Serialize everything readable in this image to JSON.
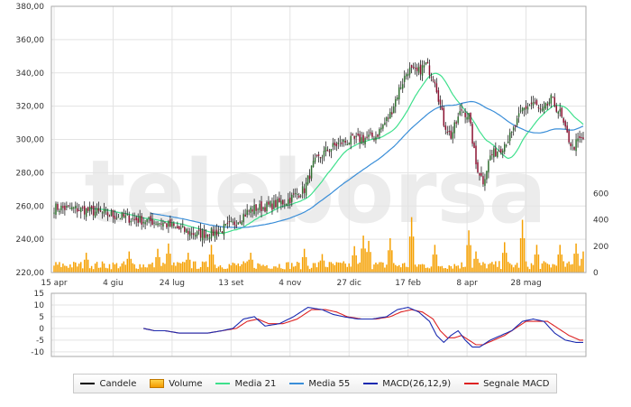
{
  "chart_data": {
    "type": "candlestick",
    "price_axis": {
      "ticks": [
        "380,00",
        "360,00",
        "340,00",
        "320,00",
        "300,00",
        "280,00",
        "260,00",
        "240,00",
        "220,00"
      ],
      "ylim": [
        220,
        380
      ]
    },
    "volume_axis": {
      "ticks": [
        "600",
        "400",
        "200",
        "0"
      ],
      "ylim": [
        0,
        650
      ]
    },
    "macd_axis": {
      "ticks": [
        "15",
        "10",
        "5",
        "0",
        "-5",
        "-10"
      ],
      "ylim": [
        -12,
        15
      ]
    },
    "x_labels": [
      "15 apr",
      "4 giu",
      "24 lug",
      "13 set",
      "4 nov",
      "27 dic",
      "17 feb",
      "8 apr",
      "28 mag"
    ],
    "x_label_pos": [
      0,
      33,
      66,
      99,
      132,
      165,
      198,
      231,
      264
    ],
    "n_periods": 297,
    "grid": true,
    "price_anchors": [
      [
        0,
        259
      ],
      [
        15,
        258
      ],
      [
        30,
        255
      ],
      [
        45,
        252
      ],
      [
        60,
        250
      ],
      [
        70,
        246
      ],
      [
        80,
        243
      ],
      [
        90,
        244
      ],
      [
        100,
        249
      ],
      [
        110,
        258
      ],
      [
        120,
        260
      ],
      [
        130,
        263
      ],
      [
        140,
        270
      ],
      [
        145,
        285
      ],
      [
        152,
        293
      ],
      [
        160,
        298
      ],
      [
        170,
        300
      ],
      [
        180,
        302
      ],
      [
        188,
        315
      ],
      [
        193,
        330
      ],
      [
        198,
        342
      ],
      [
        203,
        340
      ],
      [
        208,
        345
      ],
      [
        213,
        336
      ],
      [
        218,
        310
      ],
      [
        222,
        302
      ],
      [
        228,
        318
      ],
      [
        232,
        314
      ],
      [
        236,
        285
      ],
      [
        240,
        275
      ],
      [
        244,
        290
      ],
      [
        250,
        295
      ],
      [
        256,
        303
      ],
      [
        262,
        318
      ],
      [
        268,
        322
      ],
      [
        273,
        316
      ],
      [
        278,
        324
      ],
      [
        283,
        316
      ],
      [
        286,
        305
      ],
      [
        290,
        295
      ],
      [
        294,
        300
      ],
      [
        296,
        300
      ]
    ],
    "volume_base": 70,
    "volume_spikes": [
      [
        18,
        150
      ],
      [
        42,
        160
      ],
      [
        58,
        180
      ],
      [
        64,
        220
      ],
      [
        75,
        150
      ],
      [
        88,
        210
      ],
      [
        110,
        150
      ],
      [
        140,
        180
      ],
      [
        150,
        140
      ],
      [
        168,
        200
      ],
      [
        173,
        280
      ],
      [
        176,
        240
      ],
      [
        188,
        260
      ],
      [
        200,
        420
      ],
      [
        213,
        210
      ],
      [
        232,
        320
      ],
      [
        236,
        160
      ],
      [
        252,
        230
      ],
      [
        262,
        400
      ],
      [
        270,
        210
      ],
      [
        283,
        210
      ],
      [
        292,
        220
      ],
      [
        296,
        160
      ]
    ],
    "macd_anchors": [
      [
        50,
        0
      ],
      [
        56,
        -1
      ],
      [
        62,
        -1
      ],
      [
        70,
        -2
      ],
      [
        78,
        -2
      ],
      [
        86,
        -2
      ],
      [
        94,
        -1
      ],
      [
        100,
        0
      ],
      [
        106,
        4
      ],
      [
        112,
        5
      ],
      [
        118,
        1
      ],
      [
        126,
        2
      ],
      [
        134,
        5
      ],
      [
        142,
        9
      ],
      [
        150,
        8
      ],
      [
        156,
        6
      ],
      [
        162,
        5
      ],
      [
        170,
        4
      ],
      [
        178,
        4
      ],
      [
        186,
        5
      ],
      [
        192,
        8
      ],
      [
        198,
        9
      ],
      [
        204,
        7
      ],
      [
        210,
        3
      ],
      [
        214,
        -3
      ],
      [
        218,
        -6
      ],
      [
        222,
        -3
      ],
      [
        226,
        -1
      ],
      [
        230,
        -5
      ],
      [
        234,
        -8
      ],
      [
        238,
        -8
      ],
      [
        244,
        -5
      ],
      [
        250,
        -3
      ],
      [
        256,
        -1
      ],
      [
        262,
        3
      ],
      [
        268,
        4
      ],
      [
        274,
        3
      ],
      [
        280,
        -2
      ],
      [
        286,
        -5
      ],
      [
        292,
        -6
      ]
    ],
    "signal_anchors": [
      [
        50,
        0
      ],
      [
        56,
        -1
      ],
      [
        62,
        -1
      ],
      [
        70,
        -2
      ],
      [
        78,
        -2
      ],
      [
        86,
        -2
      ],
      [
        94,
        -1
      ],
      [
        102,
        0
      ],
      [
        108,
        3
      ],
      [
        114,
        4
      ],
      [
        120,
        2
      ],
      [
        128,
        2
      ],
      [
        136,
        4
      ],
      [
        144,
        8
      ],
      [
        152,
        8
      ],
      [
        158,
        7
      ],
      [
        164,
        5
      ],
      [
        172,
        4
      ],
      [
        180,
        4
      ],
      [
        188,
        5
      ],
      [
        194,
        7
      ],
      [
        200,
        8
      ],
      [
        206,
        7
      ],
      [
        212,
        4
      ],
      [
        216,
        -1
      ],
      [
        220,
        -4
      ],
      [
        224,
        -4
      ],
      [
        228,
        -3
      ],
      [
        232,
        -5
      ],
      [
        236,
        -7
      ],
      [
        240,
        -7
      ],
      [
        246,
        -5
      ],
      [
        252,
        -3
      ],
      [
        258,
        0
      ],
      [
        264,
        3
      ],
      [
        270,
        3
      ],
      [
        276,
        3
      ],
      [
        282,
        0
      ],
      [
        288,
        -3
      ],
      [
        294,
        -5
      ]
    ],
    "series": [
      {
        "name": "Candele",
        "color": "#000000"
      },
      {
        "name": "Volume",
        "color": "#f5a000"
      },
      {
        "name": "Media 21",
        "color": "#3ee08c"
      },
      {
        "name": "Media 55",
        "color": "#3a8ed8"
      },
      {
        "name": "MACD(26,12,9)",
        "color": "#1a2ab0"
      },
      {
        "name": "Segnale MACD",
        "color": "#dd2222"
      }
    ],
    "candle_up": "#2e6e2e",
    "candle_down": "#8a1030"
  },
  "legend": {
    "candele": "Candele",
    "volume": "Volume",
    "media21": "Media 21",
    "media55": "Media 55",
    "macd": "MACD(26,12,9)",
    "signal": "Segnale MACD"
  },
  "watermark": "teleborsa"
}
